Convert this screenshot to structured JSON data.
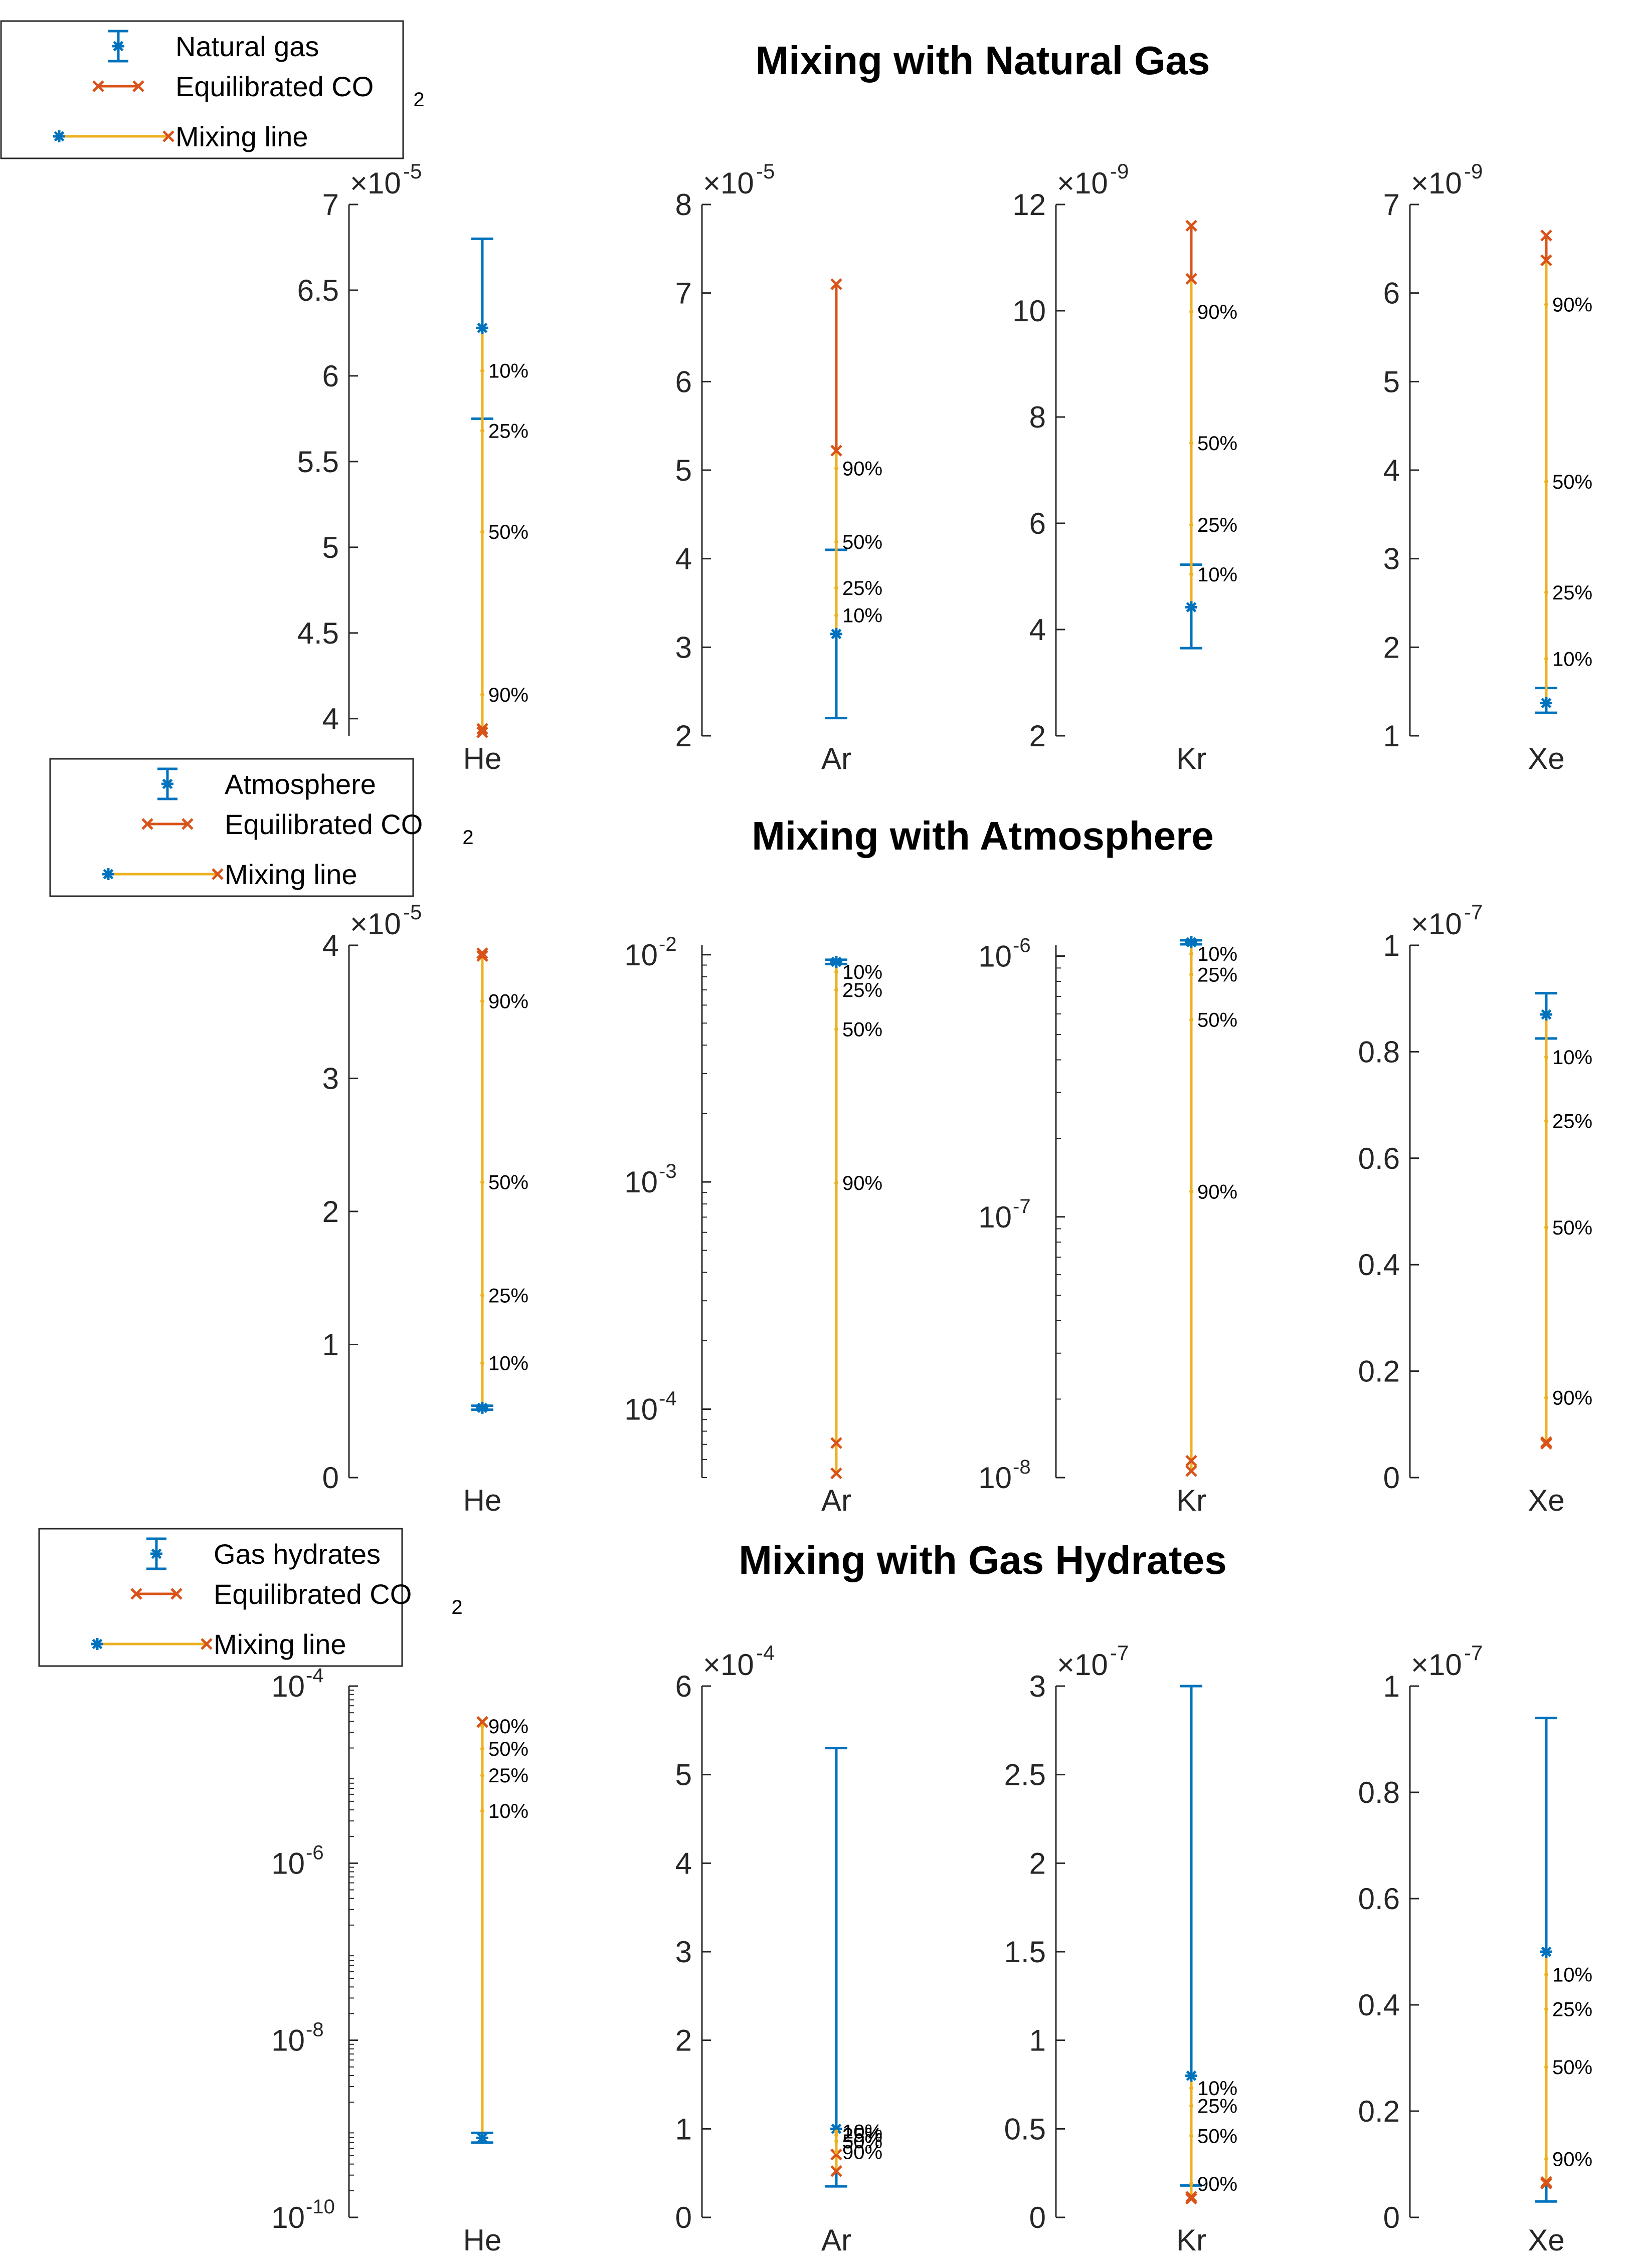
{
  "colors": {
    "nat": "#0072BD",
    "co2": "#D95319",
    "mix": "#EDB120",
    "axis": "#262626"
  },
  "chart_data": [
    {
      "type": "errorbar-mixing",
      "title": "Mixing with Natural Gas",
      "legend": {
        "end_member": "Natural gas",
        "co2_prefix": "Equilibrated CO",
        "co2_sub": "2",
        "mixing": "Mixing line"
      },
      "panels": [
        {
          "element": "He",
          "scale": "linear",
          "ylim": [
            3.9,
            7.0
          ],
          "ticks": [
            4,
            4.5,
            5,
            5.5,
            6,
            6.5,
            7
          ],
          "tick_labels": [
            "4",
            "4.5",
            "5",
            "5.5",
            "6",
            "6.5",
            "7"
          ],
          "exponent": "-5",
          "end_member": {
            "value": 6.28,
            "err_low": 5.75,
            "err_high": 6.8
          },
          "co2": [
            3.92,
            3.94
          ],
          "mix_points": [
            {
              "label": "10%",
              "value": 6.03
            },
            {
              "label": "25%",
              "value": 5.68
            },
            {
              "label": "50%",
              "value": 5.09
            },
            {
              "label": "90%",
              "value": 4.14
            }
          ]
        },
        {
          "element": "Ar",
          "scale": "linear",
          "ylim": [
            2,
            8
          ],
          "ticks": [
            2,
            3,
            4,
            5,
            6,
            7,
            8
          ],
          "tick_labels": [
            "2",
            "3",
            "4",
            "5",
            "6",
            "7",
            "8"
          ],
          "exponent": "-5",
          "end_member": {
            "value": 3.15,
            "err_low": 2.2,
            "err_high": 4.1
          },
          "co2": [
            7.1,
            5.22
          ],
          "mix_points": [
            {
              "label": "10%",
              "value": 3.36
            },
            {
              "label": "25%",
              "value": 3.67
            },
            {
              "label": "50%",
              "value": 4.19
            },
            {
              "label": "90%",
              "value": 5.02
            }
          ]
        },
        {
          "element": "Kr",
          "scale": "linear",
          "ylim": [
            2,
            12
          ],
          "ticks": [
            2,
            4,
            6,
            8,
            10,
            12
          ],
          "tick_labels": [
            "2",
            "4",
            "6",
            "8",
            "10",
            "12"
          ],
          "exponent": "-9",
          "end_member": {
            "value": 4.42,
            "err_low": 3.65,
            "err_high": 5.22
          },
          "co2": [
            11.6,
            10.6
          ],
          "mix_points": [
            {
              "label": "10%",
              "value": 5.04
            },
            {
              "label": "25%",
              "value": 5.97
            },
            {
              "label": "50%",
              "value": 7.51
            },
            {
              "label": "90%",
              "value": 9.98
            }
          ]
        },
        {
          "element": "Xe",
          "scale": "linear",
          "ylim": [
            1,
            7
          ],
          "ticks": [
            1,
            2,
            3,
            4,
            5,
            6,
            7
          ],
          "tick_labels": [
            "1",
            "2",
            "3",
            "4",
            "5",
            "6",
            "7"
          ],
          "exponent": "-9",
          "end_member": {
            "value": 1.37,
            "err_low": 1.26,
            "err_high": 1.54
          },
          "co2": [
            6.65,
            6.37
          ],
          "mix_points": [
            {
              "label": "10%",
              "value": 1.87
            },
            {
              "label": "25%",
              "value": 2.62
            },
            {
              "label": "50%",
              "value": 3.87
            },
            {
              "label": "90%",
              "value": 5.87
            }
          ]
        }
      ]
    },
    {
      "type": "errorbar-mixing",
      "title": "Mixing with Atmosphere",
      "legend": {
        "end_member": "Atmosphere",
        "co2_prefix": "Equilibrated CO",
        "co2_sub": "2",
        "mixing": "Mixing line"
      },
      "panels": [
        {
          "element": "He",
          "scale": "linear",
          "ylim": [
            0,
            4
          ],
          "ticks": [
            0,
            1,
            2,
            3,
            4
          ],
          "tick_labels": [
            "0",
            "1",
            "2",
            "3",
            "4"
          ],
          "exponent": "-5",
          "end_member": {
            "value": 0.524,
            "err_low": 0.51,
            "err_high": 0.54
          },
          "co2": [
            3.92,
            3.94
          ],
          "mix_points": [
            {
              "label": "10%",
              "value": 0.86
            },
            {
              "label": "25%",
              "value": 1.37
            },
            {
              "label": "50%",
              "value": 2.22
            },
            {
              "label": "90%",
              "value": 3.58
            }
          ]
        },
        {
          "element": "Ar",
          "scale": "log",
          "ylim": [
            5e-05,
            0.011
          ],
          "ticks": [
            0.0001,
            0.001,
            0.01
          ],
          "tick_labels": [
            "10",
            "10",
            "10"
          ],
          "tick_exps": [
            "-4",
            "-3",
            "-2"
          ],
          "minor": true,
          "end_member": {
            "value": 0.0093,
            "err_low": 0.0091,
            "err_high": 0.0095
          },
          "co2": [
            7.1e-05,
            5.22e-05
          ],
          "mix_points": [
            {
              "label": "10%",
              "value": 0.0084
            },
            {
              "label": "25%",
              "value": 0.007
            },
            {
              "label": "50%",
              "value": 0.0047
            },
            {
              "label": "90%",
              "value": 0.00099
            }
          ]
        },
        {
          "element": "Kr",
          "scale": "log",
          "ylim": [
            1e-08,
            1.1e-06
          ],
          "ticks": [
            1e-08,
            1e-07,
            1e-06
          ],
          "tick_labels": [
            "10",
            "10",
            "10"
          ],
          "tick_exps": [
            "-8",
            "-7",
            "-6"
          ],
          "minor": true,
          "end_member": {
            "value": 1.13e-06,
            "err_low": 1.11e-06,
            "err_high": 1.15e-06
          },
          "co2": [
            1.16e-08,
            1.06e-08
          ],
          "mix_points": [
            {
              "label": "10%",
              "value": 1.02e-06
            },
            {
              "label": "25%",
              "value": 8.5e-07
            },
            {
              "label": "50%",
              "value": 5.7e-07
            },
            {
              "label": "90%",
              "value": 1.25e-07
            }
          ]
        },
        {
          "element": "Xe",
          "scale": "linear",
          "ylim": [
            0,
            1
          ],
          "ticks": [
            0,
            0.2,
            0.4,
            0.6,
            0.8,
            1
          ],
          "tick_labels": [
            "0",
            "0.2",
            "0.4",
            "0.6",
            "0.8",
            "1"
          ],
          "exponent": "-7",
          "end_member": {
            "value": 0.87,
            "err_low": 0.825,
            "err_high": 0.91
          },
          "co2": [
            0.0665,
            0.0637
          ],
          "mix_points": [
            {
              "label": "10%",
              "value": 0.79
            },
            {
              "label": "25%",
              "value": 0.67
            },
            {
              "label": "50%",
              "value": 0.47
            },
            {
              "label": "90%",
              "value": 0.15
            }
          ]
        }
      ]
    },
    {
      "type": "errorbar-mixing",
      "title": "Mixing with Gas Hydrates",
      "legend": {
        "end_member": "Gas hydrates",
        "co2_prefix": "Equilibrated CO",
        "co2_sub": "2",
        "mixing": "Mixing line"
      },
      "panels": [
        {
          "element": "He",
          "scale": "log",
          "ylim": [
            1e-10,
            0.0001
          ],
          "ticks": [
            1e-10,
            1e-08,
            1e-06,
            0.0001
          ],
          "tick_labels": [
            "10",
            "10",
            "10",
            "10"
          ],
          "tick_exps": [
            "-10",
            "-8",
            "-6",
            "-4"
          ],
          "minor": true,
          "end_member": {
            "value": 7.9e-10,
            "err_low": 7e-10,
            "err_high": 9e-10
          },
          "co2": [
            3.92e-05,
            3.94e-05
          ],
          "mix_points": [
            {
              "label": "10%",
              "value": 3.9e-06
            },
            {
              "label": "25%",
              "value": 9.8e-06
            },
            {
              "label": "50%",
              "value": 1.96e-05
            },
            {
              "label": "90%",
              "value": 3.53e-05
            }
          ]
        },
        {
          "element": "Ar",
          "scale": "linear",
          "ylim": [
            0,
            6
          ],
          "ticks": [
            0,
            1,
            2,
            3,
            4,
            5,
            6
          ],
          "tick_labels": [
            "0",
            "1",
            "2",
            "3",
            "4",
            "5",
            "6"
          ],
          "exponent": "-4",
          "end_member": {
            "value": 1.0,
            "err_low": 0.35,
            "err_high": 5.3
          },
          "co2": [
            0.71,
            0.522
          ],
          "mix_points": [
            {
              "label": "10%",
              "value": 0.97
            },
            {
              "label": "25%",
              "value": 0.93
            },
            {
              "label": "50%",
              "value": 0.86
            },
            {
              "label": "90%",
              "value": 0.74
            }
          ]
        },
        {
          "element": "Kr",
          "scale": "linear",
          "ylim": [
            0,
            3
          ],
          "ticks": [
            0,
            0.5,
            1,
            1.5,
            2,
            2.5,
            3
          ],
          "tick_labels": [
            "0",
            "0.5",
            "1",
            "1.5",
            "2",
            "2.5",
            "3"
          ],
          "exponent": "-7",
          "end_member": {
            "value": 0.8,
            "err_low": 0.18,
            "err_high": 3.0
          },
          "co2": [
            0.116,
            0.106
          ],
          "mix_points": [
            {
              "label": "10%",
              "value": 0.73
            },
            {
              "label": "25%",
              "value": 0.63
            },
            {
              "label": "50%",
              "value": 0.46
            },
            {
              "label": "90%",
              "value": 0.19
            }
          ]
        },
        {
          "element": "Xe",
          "scale": "linear",
          "ylim": [
            0,
            1
          ],
          "ticks": [
            0,
            0.2,
            0.4,
            0.6,
            0.8,
            1
          ],
          "tick_labels": [
            "0",
            "0.2",
            "0.4",
            "0.6",
            "0.8",
            "1"
          ],
          "exponent": "-7",
          "end_member": {
            "value": 0.5,
            "err_low": 0.03,
            "err_high": 0.94
          },
          "co2": [
            0.0665,
            0.0637
          ],
          "mix_points": [
            {
              "label": "10%",
              "value": 0.457
            },
            {
              "label": "25%",
              "value": 0.392
            },
            {
              "label": "50%",
              "value": 0.283
            },
            {
              "label": "90%",
              "value": 0.11
            }
          ]
        }
      ]
    }
  ]
}
